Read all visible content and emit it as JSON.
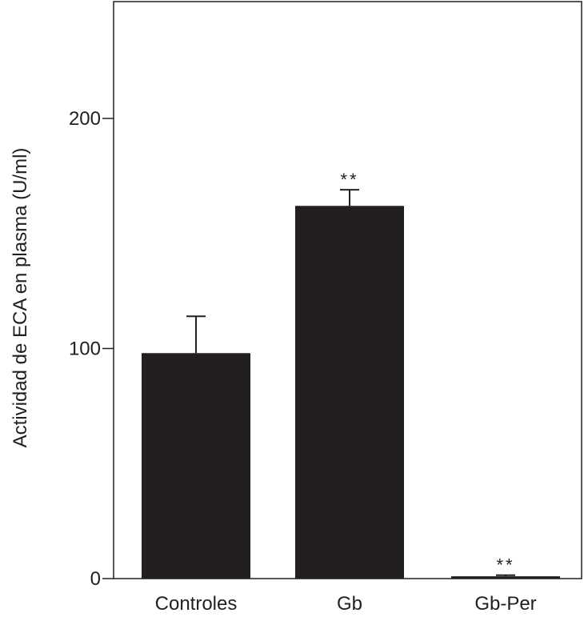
{
  "chart_data": {
    "type": "bar",
    "title": "",
    "xlabel": "",
    "ylabel": "Actividad de ECA en plasma (U/ml)",
    "categories": [
      "Controles",
      "Gb",
      "Gb-Per"
    ],
    "values": [
      98,
      162,
      1
    ],
    "error": [
      16,
      7,
      0.5
    ],
    "annotations": [
      "",
      "**",
      "**"
    ],
    "ylim": [
      0,
      240
    ],
    "yticks": [
      0,
      100,
      200
    ],
    "ytick_labels": [
      "0",
      "100",
      "200"
    ],
    "grid": false,
    "legend": "none",
    "colors": {
      "bar": "#231f20",
      "axis": "#231f20"
    }
  }
}
